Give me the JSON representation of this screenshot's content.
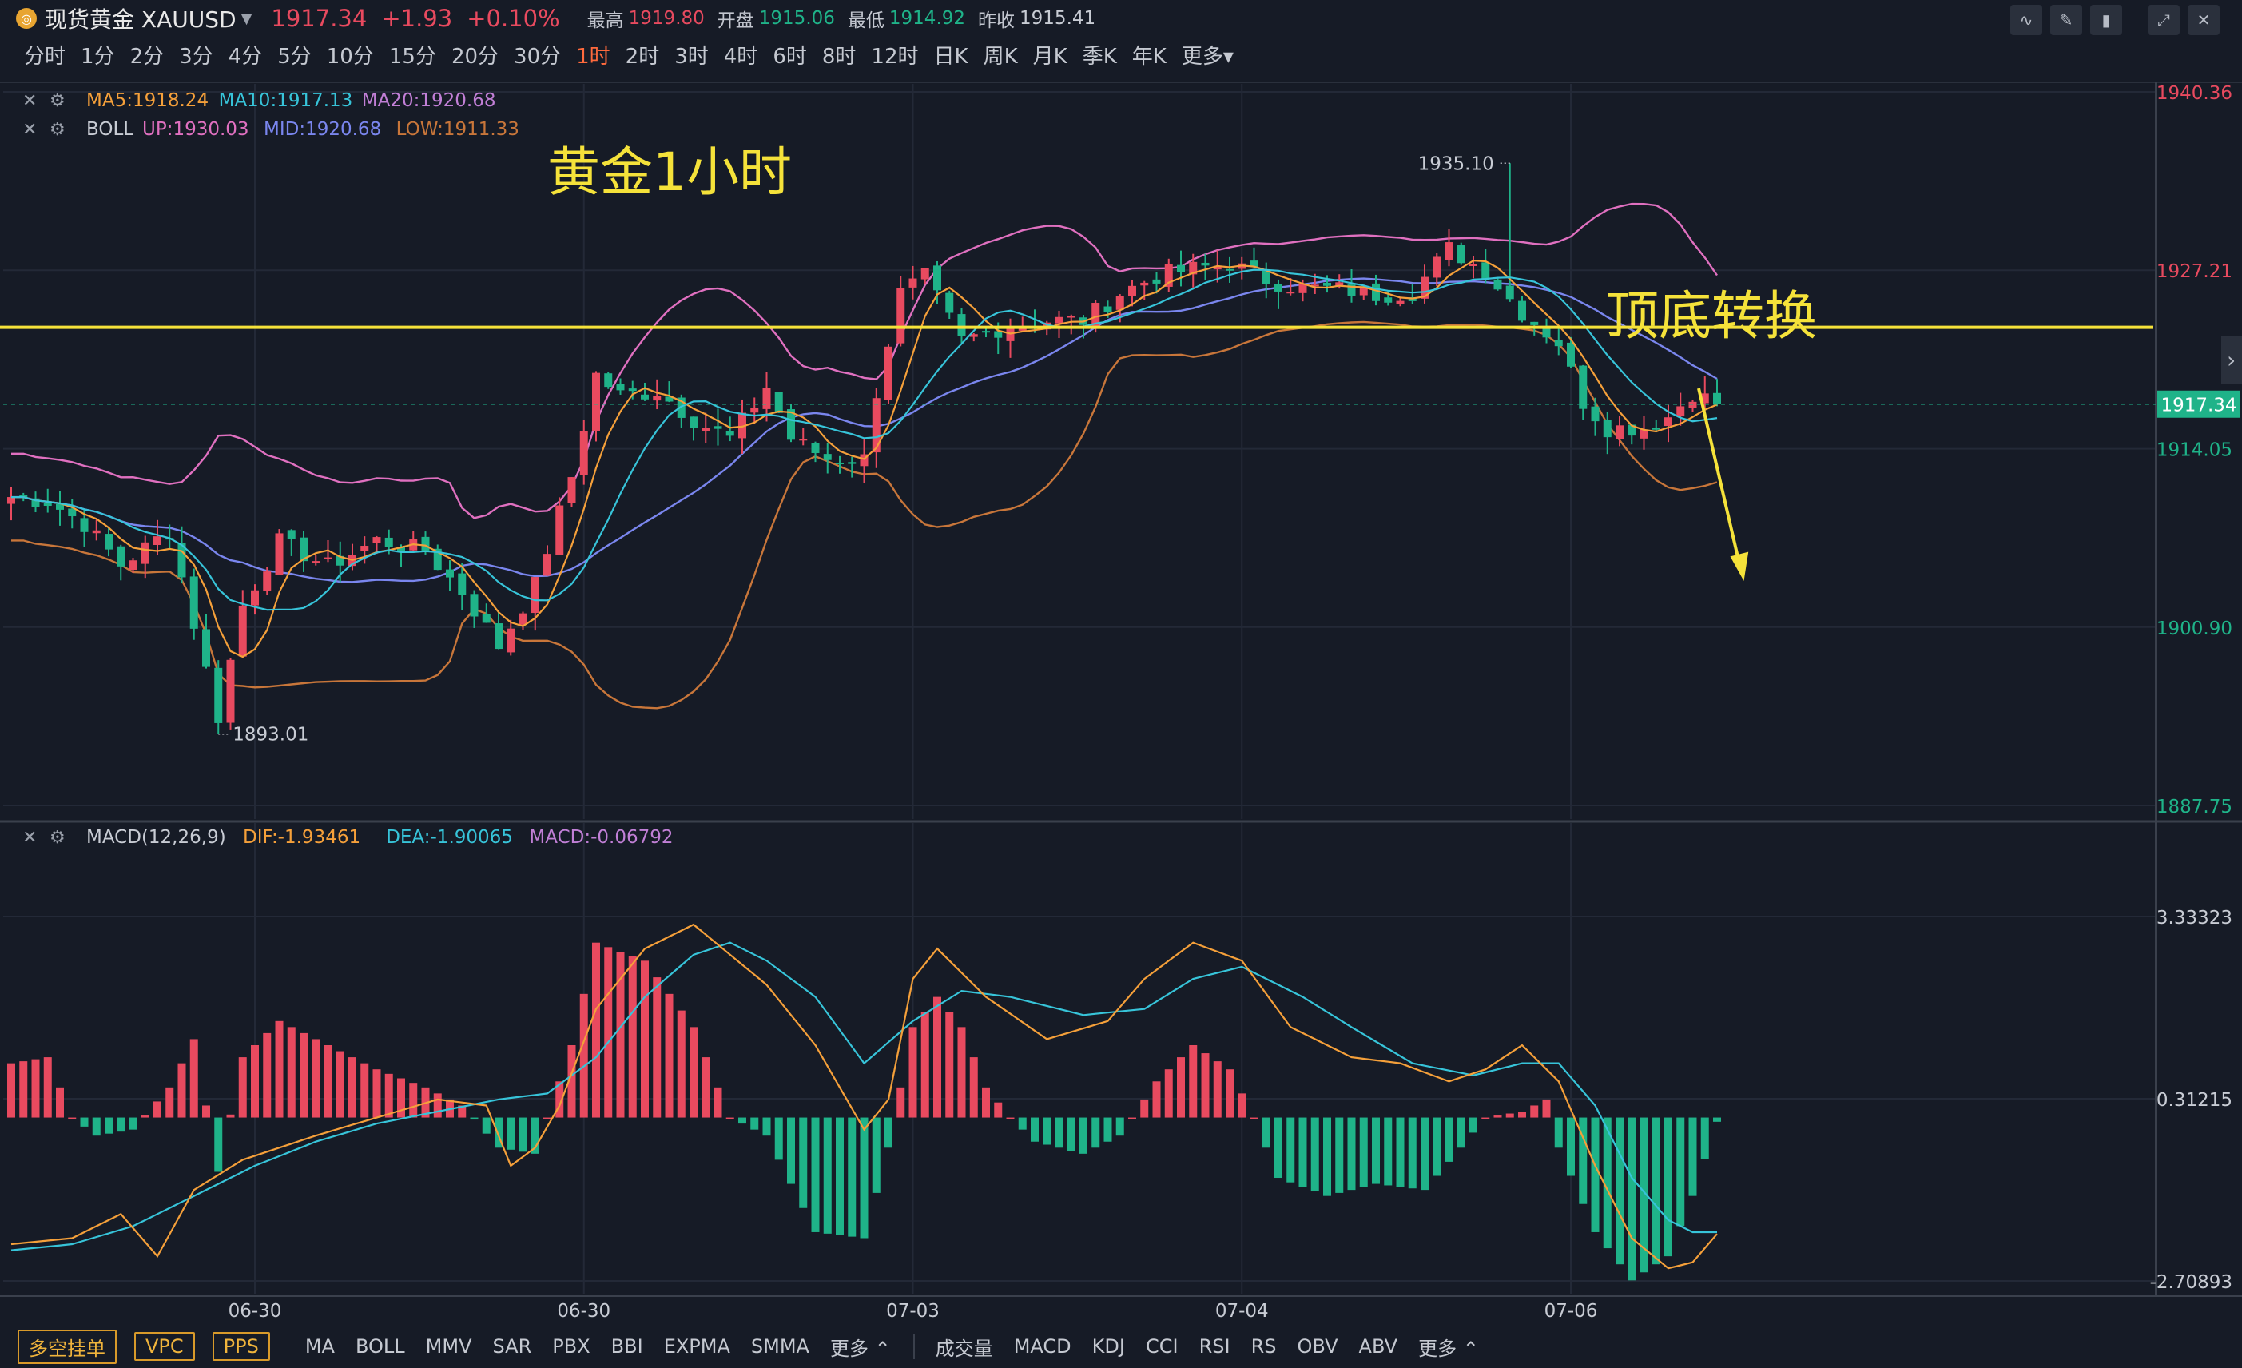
{
  "header": {
    "logo_icon": "gold-coin-icon",
    "symbol_name": "现货黄金 XAUUSD",
    "price": "1917.34",
    "change": "+1.93",
    "change_pct": "+0.10%",
    "stats": [
      {
        "label": "最高",
        "value": "1919.80",
        "color": "#e84a5f"
      },
      {
        "label": "开盘",
        "value": "1915.06",
        "color": "#1fb389"
      },
      {
        "label": "最低",
        "value": "1914.92",
        "color": "#1fb389"
      },
      {
        "label": "昨收",
        "value": "1915.41",
        "color": "#c8ccd4"
      }
    ],
    "tools": [
      "line-chart-icon",
      "pen-icon",
      "candlestick-icon",
      "expand-icon",
      "close-icon"
    ]
  },
  "timeframes": {
    "items": [
      "分时",
      "1分",
      "2分",
      "3分",
      "4分",
      "5分",
      "10分",
      "15分",
      "20分",
      "30分",
      "1时",
      "2时",
      "3时",
      "4时",
      "6时",
      "8时",
      "12时",
      "日K",
      "周K",
      "月K",
      "季K",
      "年K",
      "更多"
    ],
    "active": "1时"
  },
  "indicators": {
    "ma": {
      "items": [
        {
          "text": "MA5:1918.24",
          "color": "#f5a03a"
        },
        {
          "text": "MA10:1917.13",
          "color": "#37c4d9"
        },
        {
          "text": "MA20:1920.68",
          "color": "#c17fd6"
        }
      ]
    },
    "boll": {
      "name": "BOLL",
      "items": [
        {
          "text": "UP:1930.03",
          "color": "#e070c0"
        },
        {
          "text": "MID:1920.68",
          "color": "#7a86ee"
        },
        {
          "text": "LOW:1911.33",
          "color": "#c8763a"
        }
      ]
    },
    "macd": {
      "name": "MACD(12,26,9)",
      "items": [
        {
          "text": "DIF:-1.93461",
          "color": "#f5a03a"
        },
        {
          "text": "DEA:-1.90065",
          "color": "#37c4d9"
        },
        {
          "text": "MACD:-0.06792",
          "color": "#c17fd6"
        }
      ]
    }
  },
  "annotations": {
    "title_text": "黄金1小时",
    "right_text": "顶底转换",
    "high_label": "1935.10",
    "low_label": "1893.01",
    "line_price": 1923.0,
    "color": "#f5e23a"
  },
  "chart_data": [
    {
      "type": "candlestick",
      "title": "黄金1小时",
      "ylim": [
        1887.75,
        1940.36
      ],
      "y_ticks": [
        "1940.36",
        "1927.21",
        "1914.05",
        "1900.90",
        "1887.75"
      ],
      "y_tick_values": [
        1940.36,
        1927.21,
        1914.05,
        1900.9,
        1887.75
      ],
      "current_price_label": "1917.34",
      "current_price": 1917.34,
      "x_labels": [
        "06-30",
        "06-30",
        "07-03",
        "07-04",
        "07-06"
      ],
      "x_label_indices": [
        20,
        47,
        74,
        101,
        128
      ],
      "candle_count": 141,
      "key_closes": [
        [
          0,
          1910.5
        ],
        [
          3,
          1910.2
        ],
        [
          6,
          1908.5
        ],
        [
          9,
          1905.5
        ],
        [
          13,
          1908.0
        ],
        [
          17,
          1894.3
        ],
        [
          19,
          1902.5
        ],
        [
          22,
          1907.2
        ],
        [
          26,
          1905.4
        ],
        [
          30,
          1907.3
        ],
        [
          34,
          1906.5
        ],
        [
          37,
          1903.5
        ],
        [
          40,
          1899.5
        ],
        [
          43,
          1904.0
        ],
        [
          46,
          1912.0
        ],
        [
          48,
          1919.5
        ],
        [
          50,
          1918.0
        ],
        [
          53,
          1918.3
        ],
        [
          56,
          1916.2
        ],
        [
          59,
          1914.8
        ],
        [
          62,
          1918.6
        ],
        [
          64,
          1914.8
        ],
        [
          67,
          1913.3
        ],
        [
          70,
          1913.3
        ],
        [
          71,
          1918.3
        ],
        [
          73,
          1925.5
        ],
        [
          75,
          1926.7
        ],
        [
          78,
          1922.0
        ],
        [
          82,
          1923.2
        ],
        [
          85,
          1923.5
        ],
        [
          88,
          1923.5
        ],
        [
          91,
          1925.5
        ],
        [
          94,
          1926.8
        ],
        [
          97,
          1927.3
        ],
        [
          100,
          1927.7
        ],
        [
          103,
          1926.5
        ],
        [
          106,
          1925.9
        ],
        [
          109,
          1925.8
        ],
        [
          112,
          1925.4
        ],
        [
          115,
          1925.6
        ],
        [
          118,
          1928.8
        ],
        [
          121,
          1927.1
        ],
        [
          124,
          1924.1
        ],
        [
          127,
          1921.9
        ],
        [
          129,
          1917.5
        ],
        [
          131,
          1915.6
        ],
        [
          134,
          1915.6
        ],
        [
          136,
          1916.4
        ],
        [
          138,
          1918.2
        ],
        [
          140,
          1917.34
        ]
      ],
      "high_annotation": {
        "index": 123,
        "value": 1935.1
      },
      "low_annotation": {
        "index": 17,
        "value": 1893.01
      },
      "series": [
        {
          "name": "MA5",
          "color": "#f5a03a",
          "last": 1918.24
        },
        {
          "name": "MA10",
          "color": "#37c4d9",
          "last": 1917.13
        },
        {
          "name": "MA20",
          "color": "#c17fd6",
          "last": 1920.68
        },
        {
          "name": "UP",
          "color": "#e070c0",
          "last": 1930.03
        },
        {
          "name": "MID",
          "color": "#7a86ee",
          "last": 1920.68
        },
        {
          "name": "LOW",
          "color": "#c8763a",
          "last": 1911.33
        }
      ]
    },
    {
      "type": "bar",
      "title": "MACD(12,26,9)",
      "ylim": [
        -3.0,
        3.6
      ],
      "y_ticks": [
        "3.33323",
        "0.31215",
        "-2.70893"
      ],
      "y_tick_values": [
        3.33323,
        0.31215,
        -2.70893
      ],
      "key_hist": [
        [
          0,
          0.9
        ],
        [
          3,
          1.0
        ],
        [
          5,
          0.0
        ],
        [
          7,
          -0.3
        ],
        [
          10,
          -0.2
        ],
        [
          13,
          0.5
        ],
        [
          15,
          1.3
        ],
        [
          17,
          -0.9
        ],
        [
          19,
          1.0
        ],
        [
          22,
          1.6
        ],
        [
          25,
          1.3
        ],
        [
          30,
          0.8
        ],
        [
          34,
          0.5
        ],
        [
          37,
          0.2
        ],
        [
          40,
          -0.5
        ],
        [
          43,
          -0.6
        ],
        [
          46,
          1.2
        ],
        [
          48,
          2.9
        ],
        [
          52,
          2.6
        ],
        [
          56,
          1.5
        ],
        [
          59,
          0.0
        ],
        [
          62,
          -0.3
        ],
        [
          66,
          -1.9
        ],
        [
          70,
          -2.0
        ],
        [
          72,
          -0.5
        ],
        [
          74,
          1.5
        ],
        [
          76,
          2.0
        ],
        [
          78,
          1.5
        ],
        [
          80,
          0.5
        ],
        [
          82,
          0.0
        ],
        [
          84,
          -0.4
        ],
        [
          88,
          -0.6
        ],
        [
          91,
          -0.3
        ],
        [
          94,
          0.6
        ],
        [
          97,
          1.2
        ],
        [
          100,
          0.8
        ],
        [
          102,
          0.0
        ],
        [
          104,
          -1.0
        ],
        [
          108,
          -1.3
        ],
        [
          112,
          -1.1
        ],
        [
          116,
          -1.2
        ],
        [
          119,
          -0.5
        ],
        [
          121,
          0.0
        ],
        [
          124,
          0.1
        ],
        [
          126,
          0.3
        ],
        [
          127,
          -0.5
        ],
        [
          130,
          -1.9
        ],
        [
          133,
          -2.7
        ],
        [
          136,
          -2.3
        ],
        [
          138,
          -1.3
        ],
        [
          140,
          -0.07
        ]
      ],
      "key_dif": [
        [
          0,
          -2.1
        ],
        [
          5,
          -2.0
        ],
        [
          9,
          -1.6
        ],
        [
          12,
          -2.3
        ],
        [
          15,
          -1.2
        ],
        [
          19,
          -0.7
        ],
        [
          25,
          -0.3
        ],
        [
          30,
          0.0
        ],
        [
          35,
          0.3
        ],
        [
          39,
          0.2
        ],
        [
          41,
          -0.8
        ],
        [
          43,
          -0.5
        ],
        [
          45,
          0.2
        ],
        [
          48,
          1.8
        ],
        [
          52,
          2.8
        ],
        [
          56,
          3.2
        ],
        [
          59,
          2.7
        ],
        [
          62,
          2.2
        ],
        [
          66,
          1.2
        ],
        [
          70,
          -0.2
        ],
        [
          72,
          0.3
        ],
        [
          74,
          2.3
        ],
        [
          76,
          2.8
        ],
        [
          80,
          2.0
        ],
        [
          85,
          1.3
        ],
        [
          90,
          1.6
        ],
        [
          93,
          2.3
        ],
        [
          97,
          2.9
        ],
        [
          101,
          2.6
        ],
        [
          105,
          1.5
        ],
        [
          110,
          1.0
        ],
        [
          114,
          0.9
        ],
        [
          118,
          0.6
        ],
        [
          121,
          0.8
        ],
        [
          124,
          1.2
        ],
        [
          127,
          0.6
        ],
        [
          130,
          -0.8
        ],
        [
          133,
          -2.0
        ],
        [
          136,
          -2.5
        ],
        [
          138,
          -2.4
        ],
        [
          140,
          -1.93
        ]
      ],
      "key_dea": [
        [
          0,
          -2.2
        ],
        [
          5,
          -2.1
        ],
        [
          10,
          -1.8
        ],
        [
          15,
          -1.3
        ],
        [
          20,
          -0.8
        ],
        [
          25,
          -0.4
        ],
        [
          30,
          -0.1
        ],
        [
          35,
          0.1
        ],
        [
          40,
          0.3
        ],
        [
          44,
          0.4
        ],
        [
          48,
          1.0
        ],
        [
          52,
          2.0
        ],
        [
          56,
          2.7
        ],
        [
          59,
          2.9
        ],
        [
          62,
          2.6
        ],
        [
          66,
          2.0
        ],
        [
          70,
          0.9
        ],
        [
          74,
          1.6
        ],
        [
          78,
          2.1
        ],
        [
          82,
          2.0
        ],
        [
          88,
          1.7
        ],
        [
          93,
          1.8
        ],
        [
          97,
          2.3
        ],
        [
          101,
          2.5
        ],
        [
          106,
          2.0
        ],
        [
          110,
          1.5
        ],
        [
          115,
          0.9
        ],
        [
          120,
          0.7
        ],
        [
          124,
          0.9
        ],
        [
          127,
          0.9
        ],
        [
          130,
          0.2
        ],
        [
          133,
          -1.0
        ],
        [
          136,
          -1.7
        ],
        [
          138,
          -1.9
        ],
        [
          140,
          -1.9
        ]
      ]
    }
  ],
  "footer": {
    "buttons": [
      "多空挂单",
      "VPC",
      "PPS"
    ],
    "main_indicators": [
      "MA",
      "BOLL",
      "MMV",
      "SAR",
      "PBX",
      "BBI",
      "EXPMA",
      "SMMA",
      "更多"
    ],
    "sub_indicators": [
      "成交量",
      "MACD",
      "KDJ",
      "CCI",
      "RSI",
      "RS",
      "OBV",
      "ABV",
      "更多"
    ]
  }
}
